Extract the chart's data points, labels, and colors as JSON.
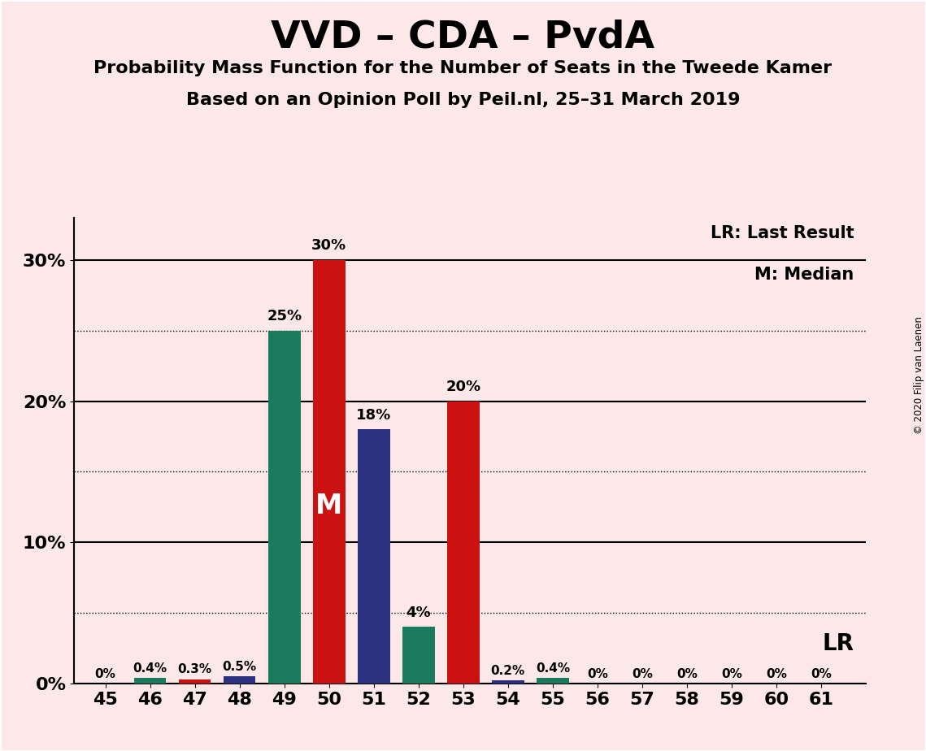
{
  "title": "VVD – CDA – PvdA",
  "subtitle1": "Probability Mass Function for the Number of Seats in the Tweede Kamer",
  "subtitle2": "Based on an Opinion Poll by Peil.nl, 25–31 March 2019",
  "background_color": "#fce8e8",
  "seats": [
    45,
    46,
    47,
    48,
    49,
    50,
    51,
    52,
    53,
    54,
    55,
    56,
    57,
    58,
    59,
    60,
    61
  ],
  "values": [
    0.0,
    0.4,
    0.3,
    0.5,
    25.0,
    30.0,
    18.0,
    4.0,
    20.0,
    0.2,
    0.4,
    0.0,
    0.0,
    0.0,
    0.0,
    0.0,
    0.0
  ],
  "bar_colors": [
    "#1a7a5e",
    "#1a7a5e",
    "#cc1111",
    "#2b3080",
    "#1a7a5e",
    "#cc1111",
    "#2b3080",
    "#1a7a5e",
    "#cc1111",
    "#2b3080",
    "#1a7a5e",
    "#cc1111",
    "#2b3080",
    "#1a7a5e",
    "#cc1111",
    "#2b3080",
    "#1a7a5e"
  ],
  "bar_labels": [
    "0%",
    "0.4%",
    "0.3%",
    "0.5%",
    "25%",
    "30%",
    "18%",
    "4%",
    "20%",
    "0.2%",
    "0.4%",
    "0%",
    "0%",
    "0%",
    "0%",
    "0%",
    "0%"
  ],
  "show_label": [
    true,
    true,
    true,
    true,
    true,
    true,
    true,
    true,
    true,
    true,
    true,
    true,
    true,
    true,
    true,
    true,
    true
  ],
  "ylim": [
    0,
    33
  ],
  "yticks": [
    0,
    10,
    20,
    30
  ],
  "ytick_labels": [
    "0%",
    "10%",
    "20%",
    "30%"
  ],
  "median_seat": 50,
  "lr_seat": 50,
  "legend_lr": "LR: Last Result",
  "legend_m": "M: Median",
  "lr_label": "LR",
  "m_label": "M",
  "solid_lines": [
    10,
    20,
    30
  ],
  "dotted_lines": [
    5,
    15,
    25
  ],
  "copyright": "© 2020 Filip van Laenen",
  "title_fontsize": 34,
  "subtitle_fontsize": 16,
  "tick_fontsize": 16,
  "label_fontsize": 13,
  "bar_width": 0.72
}
